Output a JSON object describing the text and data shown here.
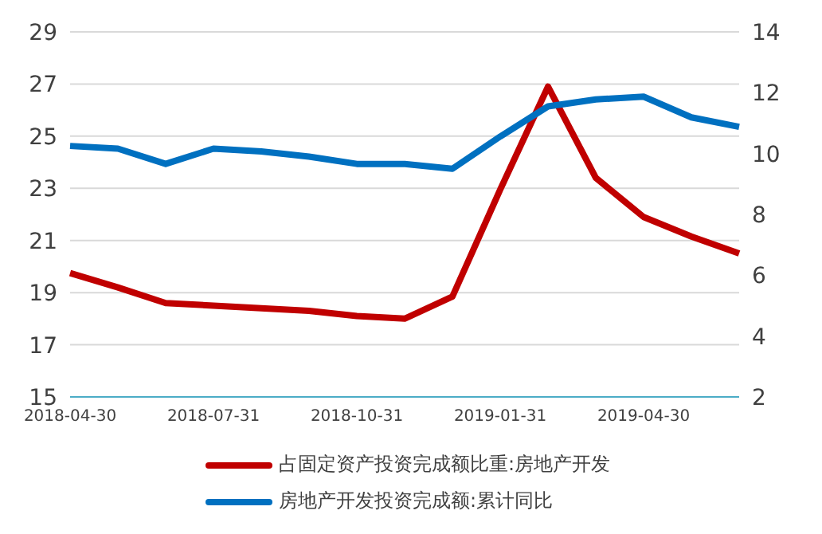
{
  "chart_data": {
    "type": "line",
    "categories": [
      "2018-04-30",
      null,
      null,
      "2018-07-31",
      null,
      null,
      "2018-10-31",
      null,
      null,
      "2019-01-31",
      null,
      null,
      "2019-04-30",
      null,
      null
    ],
    "series": [
      {
        "name": "占固定资产投资完成额比重:房地产开发",
        "color": "#c00000",
        "values": [
          19.75,
          19.2,
          18.6,
          18.5,
          18.4,
          18.3,
          18.1,
          18.0,
          18.85,
          22.95,
          26.9,
          23.4,
          21.9,
          21.15,
          20.5
        ]
      },
      {
        "name": "房地产开发投资完成额:累计同比",
        "color": "#0070c0",
        "axis": "y2",
        "values": [
          10.25,
          10.16,
          9.66,
          10.16,
          10.07,
          9.9,
          9.66,
          9.66,
          9.5,
          10.56,
          11.55,
          11.78,
          11.87,
          11.19,
          10.88
        ]
      }
    ],
    "ylim": [
      15,
      29
    ],
    "yticks": [
      15,
      17,
      19,
      21,
      23,
      25,
      27,
      29
    ],
    "y2lim": [
      2,
      14
    ],
    "y2ticks": [
      2,
      4,
      6,
      8,
      10,
      12,
      14
    ],
    "grid": "y",
    "legend": "bottom",
    "marker": "none",
    "line_style": "solid"
  }
}
